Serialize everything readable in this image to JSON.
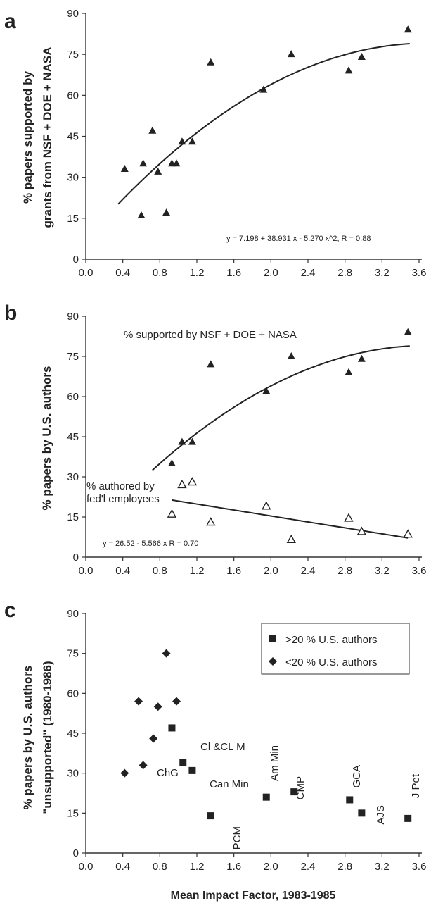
{
  "chart_data": [
    {
      "id": "a",
      "type": "scatter",
      "panel_label": "a",
      "ylabel_lines": [
        "% papers supported by",
        "grants from NSF + DOE + NASA"
      ],
      "xlabel": "",
      "xlim": [
        0.0,
        3.6
      ],
      "ylim": [
        0,
        90
      ],
      "xticks": [
        "0.0",
        "0.4",
        "0.8",
        "1.2",
        "1.6",
        "2.0",
        "2.4",
        "2.8",
        "3.2",
        "3.6"
      ],
      "yticks": [
        "0",
        "15",
        "30",
        "45",
        "60",
        "75",
        "90"
      ],
      "grid": false,
      "series": [
        {
          "marker": "filled-triangle",
          "points": [
            [
              0.42,
              33
            ],
            [
              0.6,
              16
            ],
            [
              0.62,
              35
            ],
            [
              0.72,
              47
            ],
            [
              0.78,
              32
            ],
            [
              0.87,
              17
            ],
            [
              0.93,
              35
            ],
            [
              0.98,
              35
            ],
            [
              1.04,
              43
            ],
            [
              1.15,
              43
            ],
            [
              1.35,
              72
            ],
            [
              1.92,
              62
            ],
            [
              2.22,
              75
            ],
            [
              2.84,
              69
            ],
            [
              2.98,
              74
            ],
            [
              3.48,
              84
            ]
          ]
        }
      ],
      "fit": {
        "a": 7.198,
        "b": 38.931,
        "c": -5.27,
        "xrange": [
          0.35,
          3.5
        ]
      },
      "equation": "y = 7.198   + 38.931  x - 5.270  x^2;  R = 0.88"
    },
    {
      "id": "b",
      "type": "scatter",
      "panel_label": "b",
      "ylabel_lines": [
        "% papers by U.S. authors"
      ],
      "xlabel": "",
      "xlim": [
        0.0,
        3.6
      ],
      "ylim": [
        0,
        90
      ],
      "xticks": [
        "0.0",
        "0.4",
        "0.8",
        "1.2",
        "1.6",
        "2.0",
        "2.4",
        "2.8",
        "3.2",
        "3.6"
      ],
      "yticks": [
        "0",
        "15",
        "30",
        "45",
        "60",
        "75",
        "90"
      ],
      "grid": false,
      "series": [
        {
          "name": "% supported by NSF + DOE + NASA",
          "marker": "filled-triangle",
          "points": [
            [
              0.93,
              35
            ],
            [
              1.04,
              43
            ],
            [
              1.15,
              43
            ],
            [
              1.35,
              72
            ],
            [
              1.95,
              62
            ],
            [
              2.22,
              75
            ],
            [
              2.84,
              69
            ],
            [
              2.98,
              74
            ],
            [
              3.48,
              84
            ]
          ]
        },
        {
          "name": "% authored by fed'l employees",
          "marker": "open-triangle",
          "points": [
            [
              0.93,
              16
            ],
            [
              1.04,
              27
            ],
            [
              1.15,
              28
            ],
            [
              1.35,
              13
            ],
            [
              1.95,
              19
            ],
            [
              2.22,
              6.5
            ],
            [
              2.84,
              14.5
            ],
            [
              2.98,
              9.5
            ],
            [
              3.48,
              8.5
            ]
          ]
        }
      ],
      "fits": [
        {
          "a": 7.198,
          "b": 38.931,
          "c": -5.27,
          "xrange": [
            0.72,
            3.5
          ]
        },
        {
          "a": 26.52,
          "b": -5.566,
          "c": 0,
          "xrange": [
            0.93,
            3.48
          ]
        }
      ],
      "annotations": {
        "upper": "% supported by NSF + DOE + NASA",
        "lower_line1": "% authored by",
        "lower_line2": "fed'l employees"
      },
      "equation": "y = 26.52   - 5.566  x   R = 0.70"
    },
    {
      "id": "c",
      "type": "scatter",
      "panel_label": "c",
      "ylabel_lines": [
        "% papers by U.S. authors",
        "\"unsupported\" (1980-1986)"
      ],
      "xlabel": "Mean Impact Factor, 1983-1985",
      "xlim": [
        0.0,
        3.6
      ],
      "ylim": [
        0,
        90
      ],
      "xticks": [
        "0.0",
        "0.4",
        "0.8",
        "1.2",
        "1.6",
        "2.0",
        "2.4",
        "2.8",
        "3.2",
        "3.6"
      ],
      "yticks": [
        "0",
        "15",
        "30",
        "45",
        "60",
        "75",
        "90"
      ],
      "grid": false,
      "legend_position": "top-right",
      "series": [
        {
          "name": ">20 % U.S. authors",
          "marker": "square",
          "points": [
            [
              0.93,
              47
            ],
            [
              1.05,
              34
            ],
            [
              1.15,
              31
            ],
            [
              1.35,
              14
            ],
            [
              1.95,
              21
            ],
            [
              2.25,
              23
            ],
            [
              2.85,
              20
            ],
            [
              2.98,
              15
            ],
            [
              3.48,
              13
            ]
          ]
        },
        {
          "name": "<20 % U.S. authors",
          "marker": "diamond",
          "points": [
            [
              0.42,
              30
            ],
            [
              0.57,
              57
            ],
            [
              0.62,
              33
            ],
            [
              0.73,
              43
            ],
            [
              0.78,
              55
            ],
            [
              0.87,
              75
            ],
            [
              0.98,
              57
            ]
          ]
        }
      ],
      "point_labels": {
        "clclm": "Cl &CL M",
        "chg": "ChG",
        "canmin": "Can Min",
        "pcm": "PCM",
        "ammin": "Am Min",
        "cmp": "CMP",
        "gca": "GCA",
        "ajs": "AJS",
        "jpet": "J Pet"
      }
    }
  ]
}
